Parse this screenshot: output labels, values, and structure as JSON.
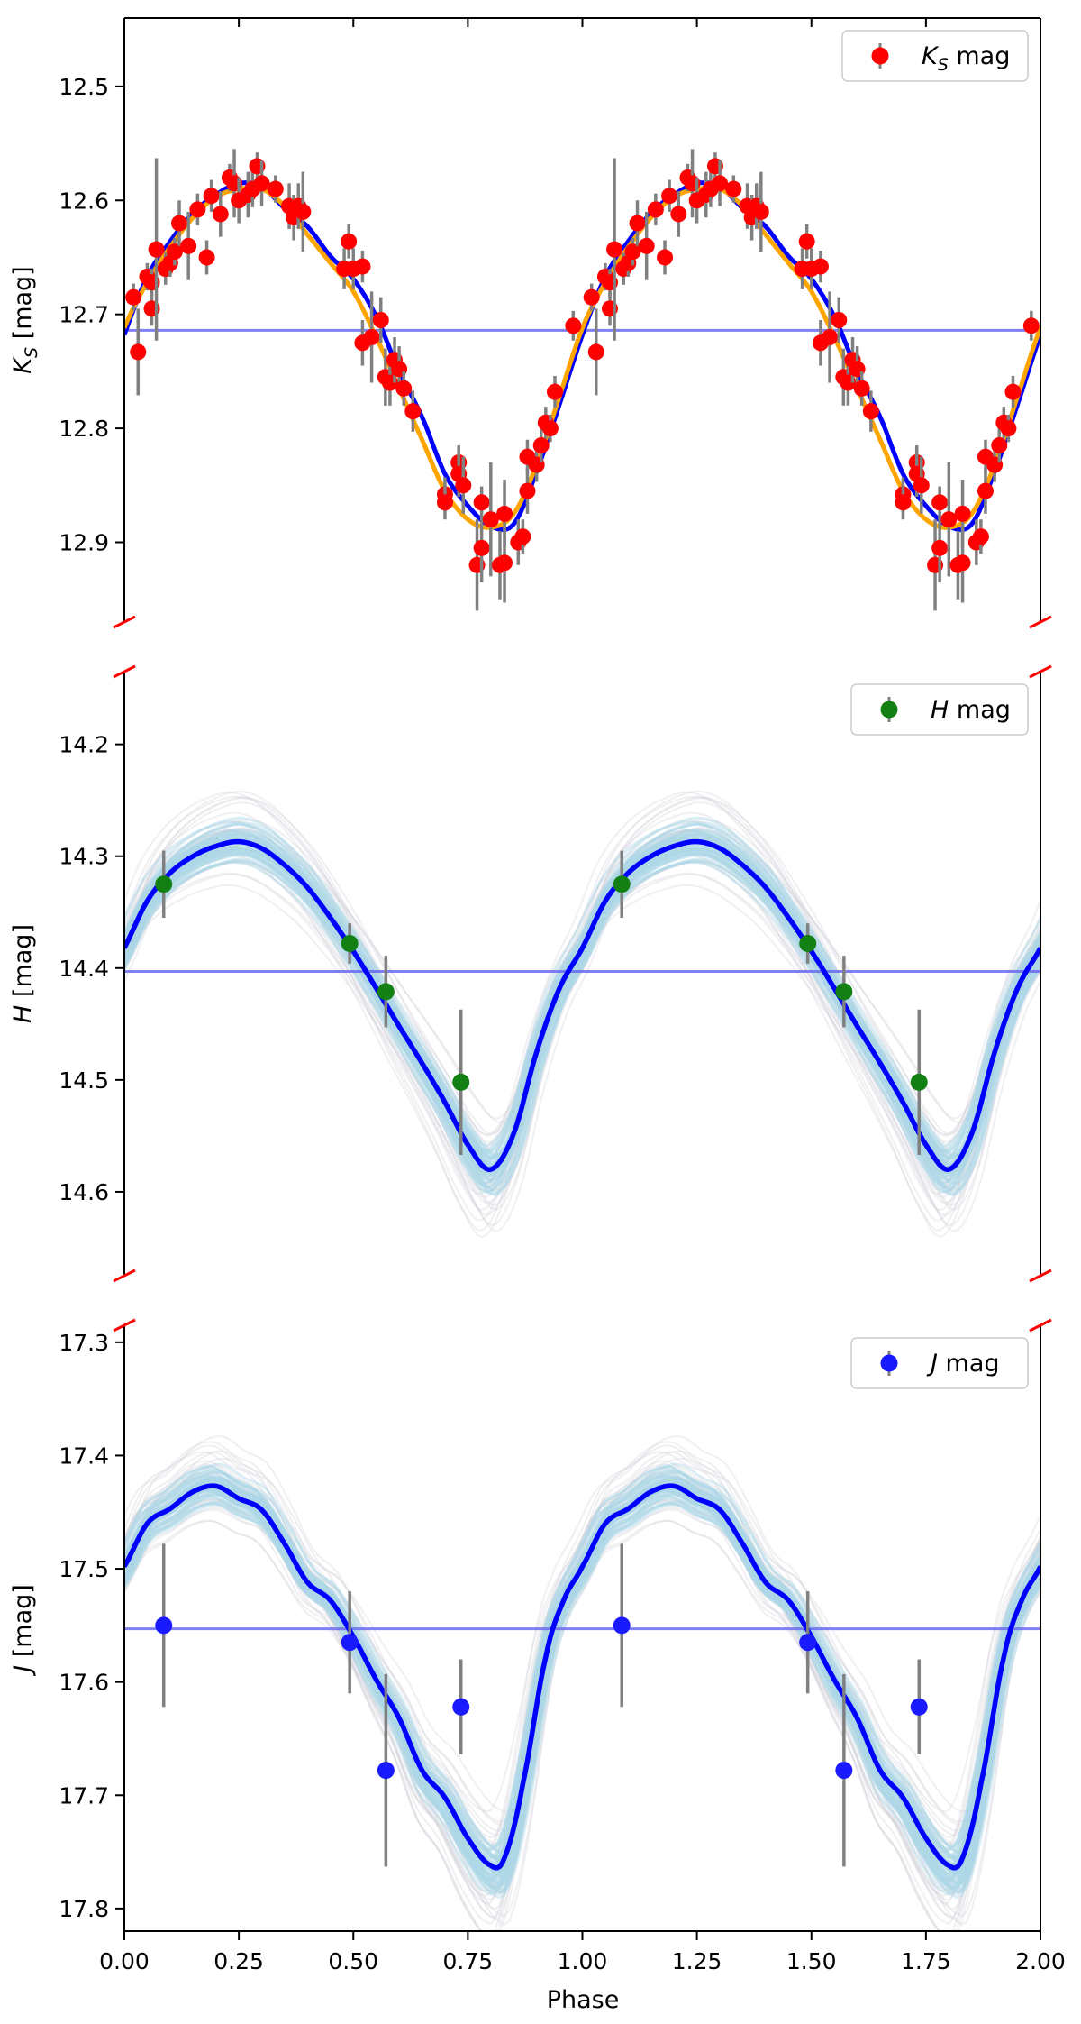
{
  "chart_data": [
    {
      "type": "scatter",
      "band": "K",
      "ylabel": "K_S [mag]",
      "legend": {
        "label": "K_S mag",
        "marker_color": "#ff0000",
        "placement": "top-right"
      },
      "ylim": [
        12.97,
        12.44
      ],
      "yticks": [
        12.5,
        12.6,
        12.7,
        12.8,
        12.9
      ],
      "mean_mag": 12.714,
      "mean_color": "#6a6af0",
      "point_color": "#ff0000",
      "errorbar_color": "#808080",
      "fit_curves": [
        {
          "color": "#0000ff",
          "phase": [
            0.0,
            0.05,
            0.1,
            0.15,
            0.2,
            0.25,
            0.3,
            0.35,
            0.4,
            0.45,
            0.5,
            0.55,
            0.6,
            0.65,
            0.7,
            0.75,
            0.8,
            0.85,
            0.9,
            0.95,
            1.0
          ],
          "mag": [
            12.718,
            12.667,
            12.636,
            12.611,
            12.595,
            12.585,
            12.588,
            12.607,
            12.623,
            12.649,
            12.669,
            12.702,
            12.75,
            12.79,
            12.84,
            12.868,
            12.886,
            12.884,
            12.838,
            12.779,
            12.718
          ]
        },
        {
          "color": "#ffa500",
          "phase": [
            0.0,
            0.05,
            0.1,
            0.15,
            0.2,
            0.25,
            0.3,
            0.35,
            0.4,
            0.45,
            0.5,
            0.55,
            0.6,
            0.65,
            0.7,
            0.75,
            0.8,
            0.85,
            0.9,
            0.95,
            1.0
          ],
          "mag": [
            12.712,
            12.672,
            12.641,
            12.615,
            12.597,
            12.59,
            12.59,
            12.605,
            12.63,
            12.655,
            12.68,
            12.72,
            12.765,
            12.81,
            12.855,
            12.88,
            12.887,
            12.875,
            12.832,
            12.772,
            12.712
          ]
        }
      ],
      "points": [
        {
          "phase": 0.02,
          "mag": 12.685,
          "err": 0.012
        },
        {
          "phase": 0.03,
          "mag": 12.733,
          "err": 0.038
        },
        {
          "phase": 0.05,
          "mag": 12.667,
          "err": 0.012
        },
        {
          "phase": 0.06,
          "mag": 12.695,
          "err": 0.015
        },
        {
          "phase": 0.06,
          "mag": 12.672,
          "err": 0.012
        },
        {
          "phase": 0.07,
          "mag": 12.643,
          "err": 0.08
        },
        {
          "phase": 0.09,
          "mag": 12.66,
          "err": 0.014
        },
        {
          "phase": 0.1,
          "mag": 12.655,
          "err": 0.012
        },
        {
          "phase": 0.11,
          "mag": 12.645,
          "err": 0.012
        },
        {
          "phase": 0.12,
          "mag": 12.62,
          "err": 0.02
        },
        {
          "phase": 0.14,
          "mag": 12.64,
          "err": 0.03
        },
        {
          "phase": 0.16,
          "mag": 12.608,
          "err": 0.014
        },
        {
          "phase": 0.18,
          "mag": 12.65,
          "err": 0.015
        },
        {
          "phase": 0.19,
          "mag": 12.596,
          "err": 0.014
        },
        {
          "phase": 0.21,
          "mag": 12.612,
          "err": 0.02
        },
        {
          "phase": 0.23,
          "mag": 12.58,
          "err": 0.012
        },
        {
          "phase": 0.24,
          "mag": 12.585,
          "err": 0.03
        },
        {
          "phase": 0.25,
          "mag": 12.6,
          "err": 0.02
        },
        {
          "phase": 0.27,
          "mag": 12.595,
          "err": 0.02
        },
        {
          "phase": 0.28,
          "mag": 12.59,
          "err": 0.016
        },
        {
          "phase": 0.29,
          "mag": 12.57,
          "err": 0.012
        },
        {
          "phase": 0.3,
          "mag": 12.585,
          "err": 0.02
        },
        {
          "phase": 0.33,
          "mag": 12.59,
          "err": 0.012
        },
        {
          "phase": 0.36,
          "mag": 12.605,
          "err": 0.02
        },
        {
          "phase": 0.37,
          "mag": 12.615,
          "err": 0.02
        },
        {
          "phase": 0.38,
          "mag": 12.605,
          "err": 0.02
        },
        {
          "phase": 0.39,
          "mag": 12.61,
          "err": 0.035
        },
        {
          "phase": 0.48,
          "mag": 12.66,
          "err": 0.018
        },
        {
          "phase": 0.49,
          "mag": 12.636,
          "err": 0.015
        },
        {
          "phase": 0.5,
          "mag": 12.66,
          "err": 0.018
        },
        {
          "phase": 0.52,
          "mag": 12.658,
          "err": 0.014
        },
        {
          "phase": 0.52,
          "mag": 12.725,
          "err": 0.02
        },
        {
          "phase": 0.54,
          "mag": 12.72,
          "err": 0.04
        },
        {
          "phase": 0.56,
          "mag": 12.705,
          "err": 0.02
        },
        {
          "phase": 0.57,
          "mag": 12.755,
          "err": 0.025
        },
        {
          "phase": 0.58,
          "mag": 12.76,
          "err": 0.02
        },
        {
          "phase": 0.59,
          "mag": 12.74,
          "err": 0.02
        },
        {
          "phase": 0.6,
          "mag": 12.748,
          "err": 0.02
        },
        {
          "phase": 0.61,
          "mag": 12.765,
          "err": 0.015
        },
        {
          "phase": 0.63,
          "mag": 12.785,
          "err": 0.018
        },
        {
          "phase": 0.7,
          "mag": 12.858,
          "err": 0.015
        },
        {
          "phase": 0.7,
          "mag": 12.865,
          "err": 0.015
        },
        {
          "phase": 0.73,
          "mag": 12.83,
          "err": 0.015
        },
        {
          "phase": 0.73,
          "mag": 12.84,
          "err": 0.02
        },
        {
          "phase": 0.74,
          "mag": 12.85,
          "err": 0.025
        },
        {
          "phase": 0.77,
          "mag": 12.92,
          "err": 0.04
        },
        {
          "phase": 0.78,
          "mag": 12.905,
          "err": 0.03
        },
        {
          "phase": 0.78,
          "mag": 12.865,
          "err": 0.014
        },
        {
          "phase": 0.8,
          "mag": 12.88,
          "err": 0.05
        },
        {
          "phase": 0.82,
          "mag": 12.92,
          "err": 0.03
        },
        {
          "phase": 0.83,
          "mag": 12.875,
          "err": 0.03
        },
        {
          "phase": 0.83,
          "mag": 12.918,
          "err": 0.035
        },
        {
          "phase": 0.86,
          "mag": 12.9,
          "err": 0.02
        },
        {
          "phase": 0.87,
          "mag": 12.895,
          "err": 0.015
        },
        {
          "phase": 0.88,
          "mag": 12.855,
          "err": 0.02
        },
        {
          "phase": 0.88,
          "mag": 12.825,
          "err": 0.015
        },
        {
          "phase": 0.9,
          "mag": 12.832,
          "err": 0.015
        },
        {
          "phase": 0.91,
          "mag": 12.815,
          "err": 0.015
        },
        {
          "phase": 0.92,
          "mag": 12.795,
          "err": 0.014
        },
        {
          "phase": 0.93,
          "mag": 12.8,
          "err": 0.012
        },
        {
          "phase": 0.94,
          "mag": 12.768,
          "err": 0.014
        },
        {
          "phase": 0.98,
          "mag": 12.71,
          "err": 0.013
        }
      ]
    },
    {
      "type": "scatter",
      "band": "H",
      "ylabel": "H [mag]",
      "legend": {
        "label": "H mag",
        "marker_color": "#138013",
        "placement": "top-right"
      },
      "ylim": [
        14.675,
        14.135
      ],
      "yticks": [
        14.2,
        14.3,
        14.4,
        14.5,
        14.6
      ],
      "mean_mag": 14.403,
      "mean_color": "#6a6af0",
      "point_color": "#138013",
      "errorbar_color": "#808080",
      "ensemble_color": "#add8e6",
      "ensemble_halo_color": "#c8c8d4",
      "fit_curves": [
        {
          "color": "#0000ff",
          "phase": [
            0.0,
            0.05,
            0.1,
            0.15,
            0.2,
            0.25,
            0.3,
            0.35,
            0.4,
            0.45,
            0.5,
            0.55,
            0.6,
            0.65,
            0.7,
            0.75,
            0.8,
            0.85,
            0.9,
            0.95,
            1.0
          ],
          "mag": [
            14.382,
            14.34,
            14.315,
            14.3,
            14.291,
            14.287,
            14.293,
            14.308,
            14.328,
            14.355,
            14.385,
            14.418,
            14.452,
            14.485,
            14.52,
            14.558,
            14.58,
            14.548,
            14.475,
            14.418,
            14.382
          ]
        }
      ],
      "points": [
        {
          "phase": 0.086,
          "mag": 14.325,
          "err": 0.03
        },
        {
          "phase": 0.492,
          "mag": 14.378,
          "err": 0.018
        },
        {
          "phase": 0.571,
          "mag": 14.421,
          "err": 0.032
        },
        {
          "phase": 0.735,
          "mag": 14.502,
          "err": 0.065
        }
      ]
    },
    {
      "type": "scatter",
      "band": "J",
      "ylabel": "J [mag]",
      "legend": {
        "label": "J mag",
        "marker_color": "#1a1aff",
        "placement": "top-right"
      },
      "ylim": [
        17.82,
        17.285
      ],
      "yticks": [
        17.3,
        17.4,
        17.5,
        17.6,
        17.7,
        17.8
      ],
      "mean_mag": 17.553,
      "mean_color": "#6a6af0",
      "point_color": "#1a1aff",
      "errorbar_color": "#808080",
      "ensemble_color": "#add8e6",
      "ensemble_halo_color": "#c8c8d4",
      "fit_curves": [
        {
          "color": "#0000ff",
          "phase": [
            0.0,
            0.05,
            0.1,
            0.15,
            0.2,
            0.25,
            0.3,
            0.35,
            0.4,
            0.45,
            0.5,
            0.55,
            0.6,
            0.65,
            0.7,
            0.75,
            0.8,
            0.83,
            0.87,
            0.92,
            0.96,
            1.0
          ],
          "mag": [
            17.498,
            17.46,
            17.447,
            17.432,
            17.427,
            17.438,
            17.448,
            17.478,
            17.512,
            17.528,
            17.56,
            17.598,
            17.632,
            17.678,
            17.702,
            17.738,
            17.762,
            17.755,
            17.69,
            17.578,
            17.527,
            17.498
          ]
        }
      ],
      "points": [
        {
          "phase": 0.086,
          "mag": 17.55,
          "err": 0.072
        },
        {
          "phase": 0.492,
          "mag": 17.565,
          "err": 0.045
        },
        {
          "phase": 0.571,
          "mag": 17.678,
          "err": 0.085
        },
        {
          "phase": 0.735,
          "mag": 17.622,
          "err": 0.042
        }
      ]
    }
  ],
  "xaxis": {
    "label": "Phase",
    "xlim": [
      0.0,
      2.0
    ],
    "ticks": [
      "0.00",
      "0.25",
      "0.50",
      "0.75",
      "1.00",
      "1.25",
      "1.50",
      "1.75",
      "2.00"
    ]
  }
}
